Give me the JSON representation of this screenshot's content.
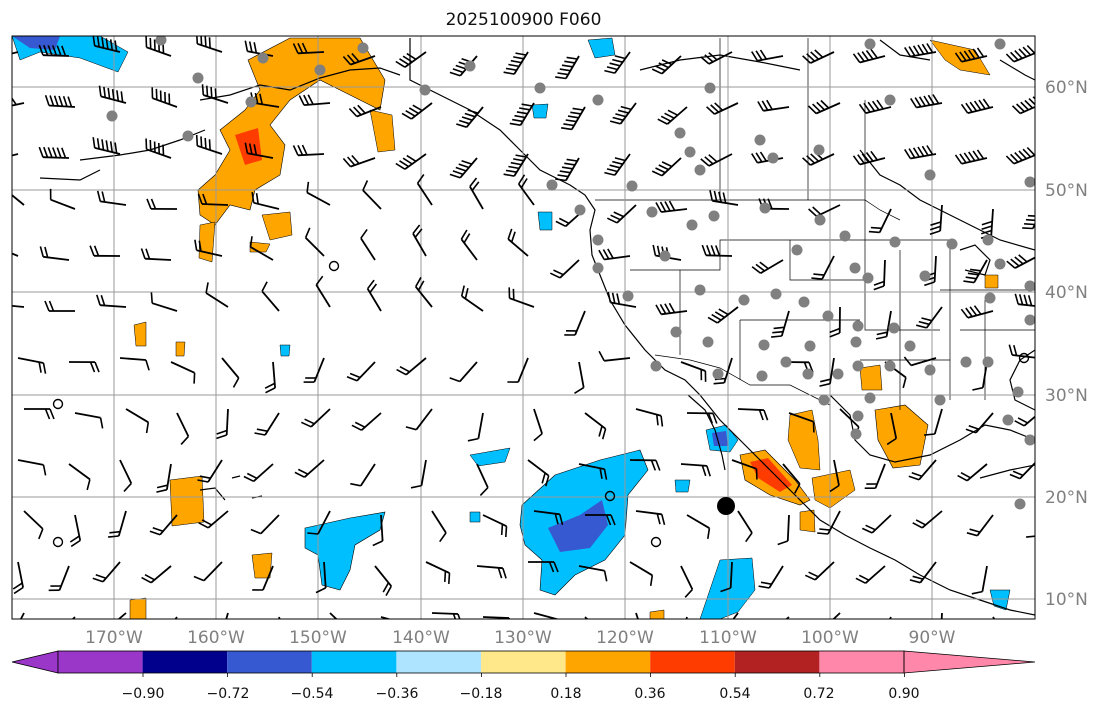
{
  "title": "2025100900 F060",
  "map": {
    "projection": "PlateCarree",
    "lon_range": [
      -180,
      -80
    ],
    "lat_range": [
      8,
      65
    ],
    "lon_labels": [
      "170°W",
      "160°W",
      "150°W",
      "140°W",
      "130°W",
      "120°W",
      "110°W",
      "100°W",
      "90°W"
    ],
    "lat_labels": [
      "60°N",
      "50°N",
      "40°N",
      "30°N",
      "20°N",
      "10°N"
    ],
    "gridlines": true,
    "wind_barbs": true,
    "station_dots": "gray",
    "marker": {
      "lon": -110,
      "lat": 19,
      "color": "#000000"
    }
  },
  "colorbar": {
    "ticks": [
      "−0.90",
      "−0.72",
      "−0.54",
      "−0.36",
      "−0.18",
      "0.18",
      "0.36",
      "0.54",
      "0.72",
      "0.90"
    ],
    "colors": [
      "#9a36c8",
      "#00008c",
      "#3658d0",
      "#00bfff",
      "#aee4ff",
      "#ffffff",
      "#ffe88a",
      "#ffa500",
      "#ff3c00",
      "#b22222",
      "#ff88aa"
    ],
    "extend": "both"
  },
  "field_regions": [
    {
      "name": "alaska-positive",
      "color": "#ffa500"
    },
    {
      "name": "gulf-of-california-positive",
      "color": "#ffa500"
    },
    {
      "name": "eastern-pacific-negative",
      "color": "#00bfff"
    },
    {
      "name": "mexico-core",
      "color": "#ff3c00"
    }
  ]
}
